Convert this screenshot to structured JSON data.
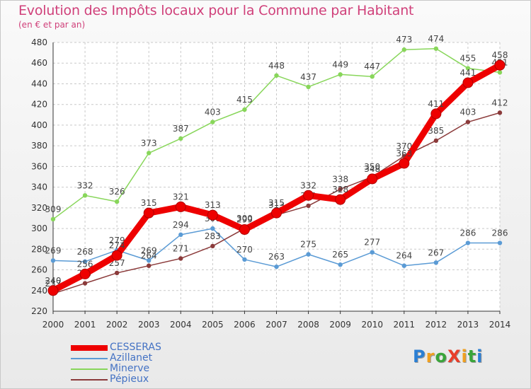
{
  "title": "Evolution des Impôts locaux pour la Commune par Habitant",
  "subtitle": "(en € et par an)",
  "logo": {
    "text": "ProXiti",
    "letter_colors": [
      "#2b7fd4",
      "#f0a020",
      "#3aa53a",
      "#e83e2a",
      "#f0a020",
      "#3aa53a"
    ]
  },
  "chart_data": {
    "type": "line",
    "x": [
      2000,
      2001,
      2002,
      2003,
      2004,
      2005,
      2006,
      2007,
      2008,
      2009,
      2010,
      2011,
      2012,
      2013,
      2014
    ],
    "ylim": [
      220,
      480
    ],
    "yticks": [
      220,
      240,
      260,
      280,
      300,
      320,
      340,
      360,
      380,
      400,
      420,
      440,
      460,
      480
    ],
    "grid": true,
    "grid_style": "dashed",
    "legend_position": "bottom-left",
    "series": [
      {
        "name": "CESSERAS",
        "color": "#ee0000",
        "emphasis": "thick",
        "values": [
          240,
          256,
          274,
          315,
          321,
          313,
          299,
          315,
          332,
          328,
          348,
          363,
          411,
          441,
          458
        ],
        "labels": [
          "240",
          "256",
          "274",
          "315",
          "321",
          "313",
          "299",
          "315",
          "332",
          "328",
          "348",
          "363",
          "411",
          "441",
          "458"
        ]
      },
      {
        "name": "Azillanet",
        "color": "#5b9bd5",
        "emphasis": "normal",
        "values": [
          269,
          268,
          279,
          269,
          294,
          300,
          270,
          263,
          275,
          265,
          277,
          264,
          267,
          286,
          286
        ],
        "labels": [
          "269",
          "268",
          "279",
          "269",
          "294",
          "300",
          "270",
          "263",
          "275",
          "265",
          "277",
          "264",
          "267",
          "286",
          "286"
        ]
      },
      {
        "name": "Minerve",
        "color": "#88d65a",
        "emphasis": "normal",
        "values": [
          309,
          332,
          326,
          373,
          387,
          403,
          415,
          448,
          437,
          449,
          447,
          473,
          474,
          455,
          451
        ],
        "labels": [
          "309",
          "332",
          "326",
          "373",
          "387",
          "403",
          "415",
          "448",
          "437",
          "449",
          "447",
          "473",
          "474",
          "455",
          "451"
        ]
      },
      {
        "name": "Pépieux",
        "color": "#8b3a3a",
        "emphasis": "normal",
        "values": [
          237,
          247,
          257,
          264,
          271,
          283,
          300,
          313,
          322,
          338,
          350,
          370,
          385,
          403,
          412
        ],
        "labels": [
          "237",
          "247",
          "257",
          "264",
          "271",
          "283",
          "300",
          "313",
          "322",
          "338",
          "350",
          "370",
          "385",
          "403",
          "412"
        ]
      }
    ]
  }
}
